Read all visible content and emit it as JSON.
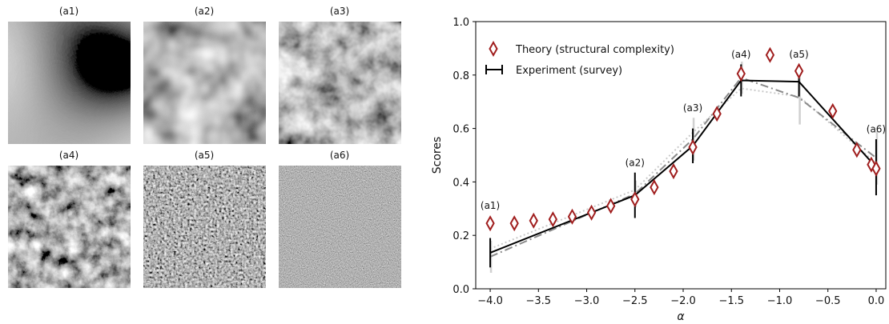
{
  "textures": {
    "labels": [
      "(a1)",
      "(a2)",
      "(a3)",
      "(a4)",
      "(a5)",
      "(a6)"
    ]
  },
  "colors": {
    "theory": "#a01e1e",
    "experiment": "#000000",
    "dashdot": "#8a8a8a",
    "dotted": "#c9c9c9",
    "errorbar_light": "#d0d0d0"
  },
  "chart_data": {
    "type": "line",
    "xlabel": "α",
    "ylabel": "Scores",
    "xlim": [
      -4.15,
      0.1
    ],
    "ylim": [
      0.0,
      1.0
    ],
    "xticks": [
      -4.0,
      -3.5,
      -3.0,
      -2.5,
      -2.0,
      -1.5,
      -1.0,
      -0.5,
      0.0
    ],
    "xtick_labels": [
      "−4.0",
      "−3.5",
      "−3.0",
      "−2.5",
      "−2.0",
      "−1.5",
      "−1.0",
      "−0.5",
      "0.0"
    ],
    "yticks": [
      0.0,
      0.2,
      0.4,
      0.6,
      0.8,
      1.0
    ],
    "ytick_labels": [
      "0.0",
      "0.2",
      "0.4",
      "0.6",
      "0.8",
      "1.0"
    ],
    "legend": {
      "placement": "top-left",
      "entries": [
        "Theory (structural complexity)",
        "Experiment (survey)"
      ]
    },
    "series": [
      {
        "name": "Theory (structural complexity)",
        "kind": "diamond-markers",
        "x": [
          -4.0,
          -3.75,
          -3.55,
          -3.35,
          -3.15,
          -2.95,
          -2.75,
          -2.5,
          -2.3,
          -2.1,
          -1.9,
          -1.65,
          -1.4,
          -1.1,
          -0.8,
          -0.45,
          -0.2,
          -0.05,
          0.0
        ],
        "y": [
          0.245,
          0.245,
          0.255,
          0.26,
          0.27,
          0.285,
          0.31,
          0.335,
          0.38,
          0.44,
          0.53,
          0.655,
          0.805,
          0.875,
          0.815,
          0.665,
          0.52,
          0.465,
          0.45
        ]
      },
      {
        "name": "Experiment (survey)",
        "kind": "line-errorbar",
        "x": [
          -4.0,
          -2.5,
          -1.9,
          -1.4,
          -0.8,
          0.0
        ],
        "y": [
          0.135,
          0.35,
          0.535,
          0.78,
          0.775,
          0.455
        ],
        "err": [
          0.055,
          0.085,
          0.065,
          0.06,
          0.055,
          0.105
        ]
      },
      {
        "kind": "dashdot-line",
        "x": [
          -4.0,
          -2.5,
          -1.9,
          -1.4,
          -0.8,
          0.0
        ],
        "y": [
          0.12,
          0.355,
          0.56,
          0.79,
          0.715,
          0.49
        ],
        "err": [
          0.06,
          0.05,
          0.08,
          0.06,
          0.1,
          0.1
        ]
      },
      {
        "kind": "dotted-line",
        "x": [
          -4.0,
          -2.5,
          -1.9,
          -1.4,
          -0.8,
          0.0
        ],
        "y": [
          0.15,
          0.37,
          0.585,
          0.75,
          0.72,
          0.47
        ]
      }
    ],
    "annotations": [
      {
        "text": "(a1)",
        "x": -4.0,
        "y": 0.3
      },
      {
        "text": "(a2)",
        "x": -2.5,
        "y": 0.46
      },
      {
        "text": "(a3)",
        "x": -1.9,
        "y": 0.665
      },
      {
        "text": "(a4)",
        "x": -1.4,
        "y": 0.865
      },
      {
        "text": "(a5)",
        "x": -0.8,
        "y": 0.865
      },
      {
        "text": "(a6)",
        "x": 0.0,
        "y": 0.585
      }
    ]
  }
}
